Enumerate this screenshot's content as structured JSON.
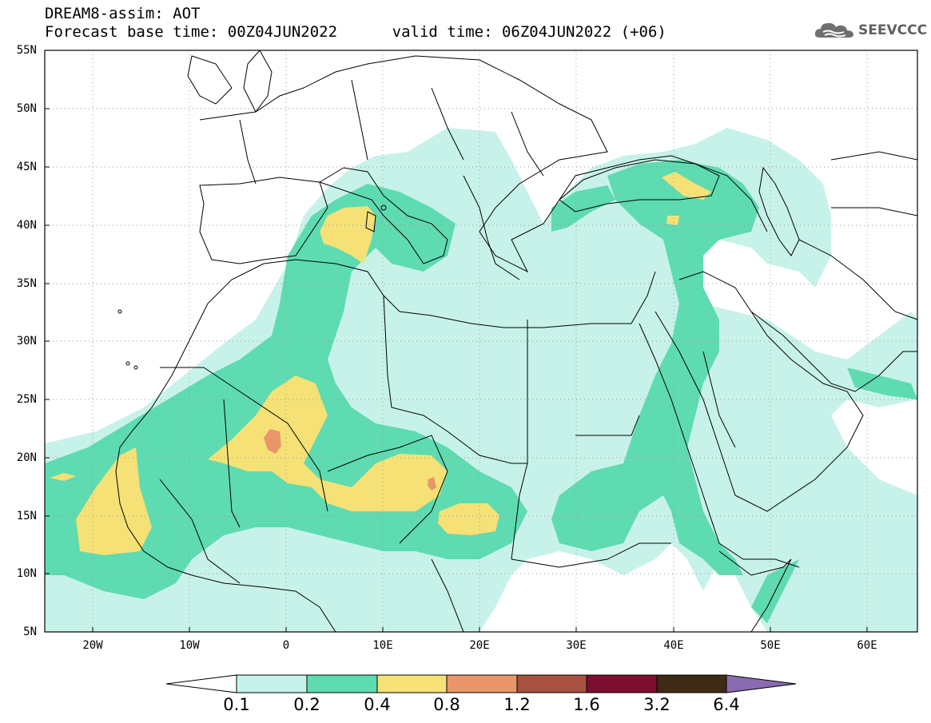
{
  "title": {
    "line1": "DREAM8-assim: AOT",
    "line2": "Forecast base time: 00Z04JUN2022      valid time: 06Z04JUN2022 (+06)"
  },
  "logo": {
    "text": "SEEVCCC",
    "icon": "cloud-icon"
  },
  "latitude_labels": [
    "55N",
    "50N",
    "45N",
    "40N",
    "35N",
    "30N",
    "25N",
    "20N",
    "15N",
    "10N",
    "5N"
  ],
  "longitude_labels": [
    "20W",
    "10W",
    "0",
    "10E",
    "20E",
    "30E",
    "40E",
    "50E",
    "60E"
  ],
  "colorbar": {
    "colors": [
      "#ffffff",
      "#c7f2ea",
      "#5edbb0",
      "#f5e176",
      "#e9966a",
      "#a9513f",
      "#7c0f2f",
      "#3f2a16",
      "#8a6bb1"
    ],
    "labels": [
      "0.1",
      "0.2",
      "0.4",
      "0.8",
      "1.2",
      "1.6",
      "3.2",
      "6.4"
    ]
  },
  "map": {
    "lon_range": [
      -25,
      65
    ],
    "lat_range": [
      5,
      55
    ],
    "grid": "dotted"
  }
}
